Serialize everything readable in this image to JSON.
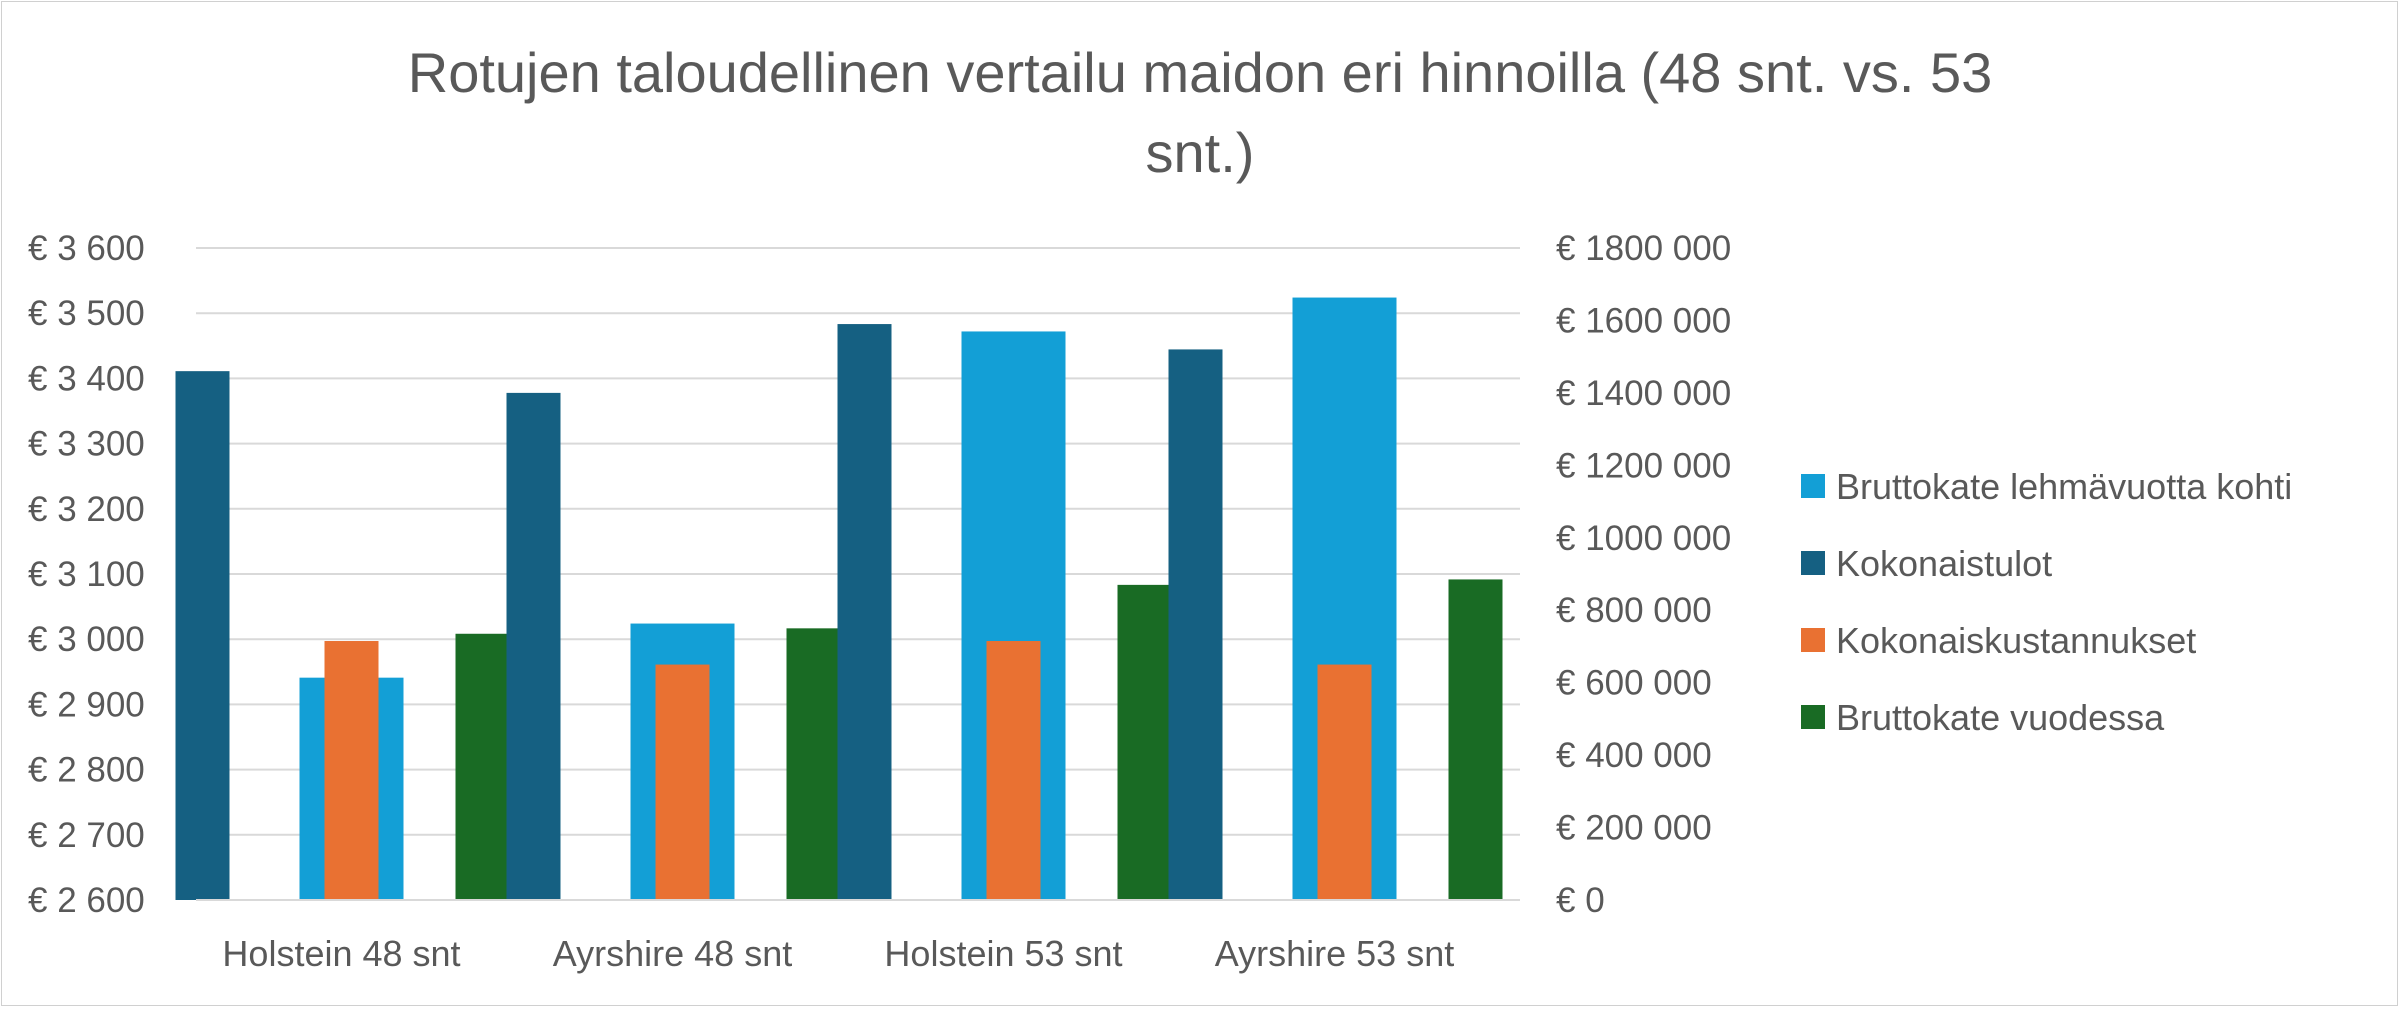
{
  "chart_data": {
    "type": "bar",
    "title": "Rotujen taloudellinen vertailu maidon eri hinnoilla (48 snt. vs. 53 snt.)",
    "title_lines": [
      "Rotujen taloudellinen vertailu maidon eri hinnoilla (48 snt. vs. 53",
      "snt.)"
    ],
    "categories": [
      "Holstein 48 snt",
      "Ayrshire 48 snt",
      "Holstein 53 snt",
      "Ayrshire 53 snt"
    ],
    "left_axis": {
      "ylim": [
        2600,
        3600
      ],
      "ticks": [
        2600,
        2700,
        2800,
        2900,
        3000,
        3100,
        3200,
        3300,
        3400,
        3500,
        3600
      ],
      "tick_labels": [
        "€ 2 600",
        "€ 2 700",
        "€ 2 800",
        "€ 2 900",
        "€ 3 000",
        "€ 3 100",
        "€ 3 200",
        "€ 3 300",
        "€ 3 400",
        "€ 3 500",
        "€ 3 600"
      ]
    },
    "right_axis": {
      "ylim": [
        0,
        1800000
      ],
      "ticks": [
        0,
        200000,
        400000,
        600000,
        800000,
        1000000,
        1200000,
        1400000,
        1600000,
        1800000
      ],
      "tick_labels": [
        "€  0",
        "€ 200 000",
        "€ 400 000",
        "€ 600 000",
        "€ 800 000",
        "€ 1000 000",
        "€ 1200 000",
        "€ 1400 000",
        "€ 1600 000",
        "€ 1800 000"
      ]
    },
    "series": [
      {
        "name": "Bruttokate lehmävuotta kohti",
        "axis": "left",
        "color": "#139fd6",
        "values": [
          2941,
          3024,
          3472,
          3524
        ]
      },
      {
        "name": "Kokonaistulot",
        "axis": "right",
        "color": "#156082",
        "values": [
          1460000,
          1400000,
          1590000,
          1520000
        ]
      },
      {
        "name": "Kokonaiskustannukset",
        "axis": "right",
        "color": "#e97132",
        "values": [
          715000,
          650000,
          715000,
          650000
        ]
      },
      {
        "name": "Bruttokate vuodessa",
        "axis": "right",
        "color": "#196b24",
        "values": [
          735000,
          750000,
          870000,
          885000
        ]
      }
    ],
    "grid": true,
    "legend_position": "right"
  }
}
